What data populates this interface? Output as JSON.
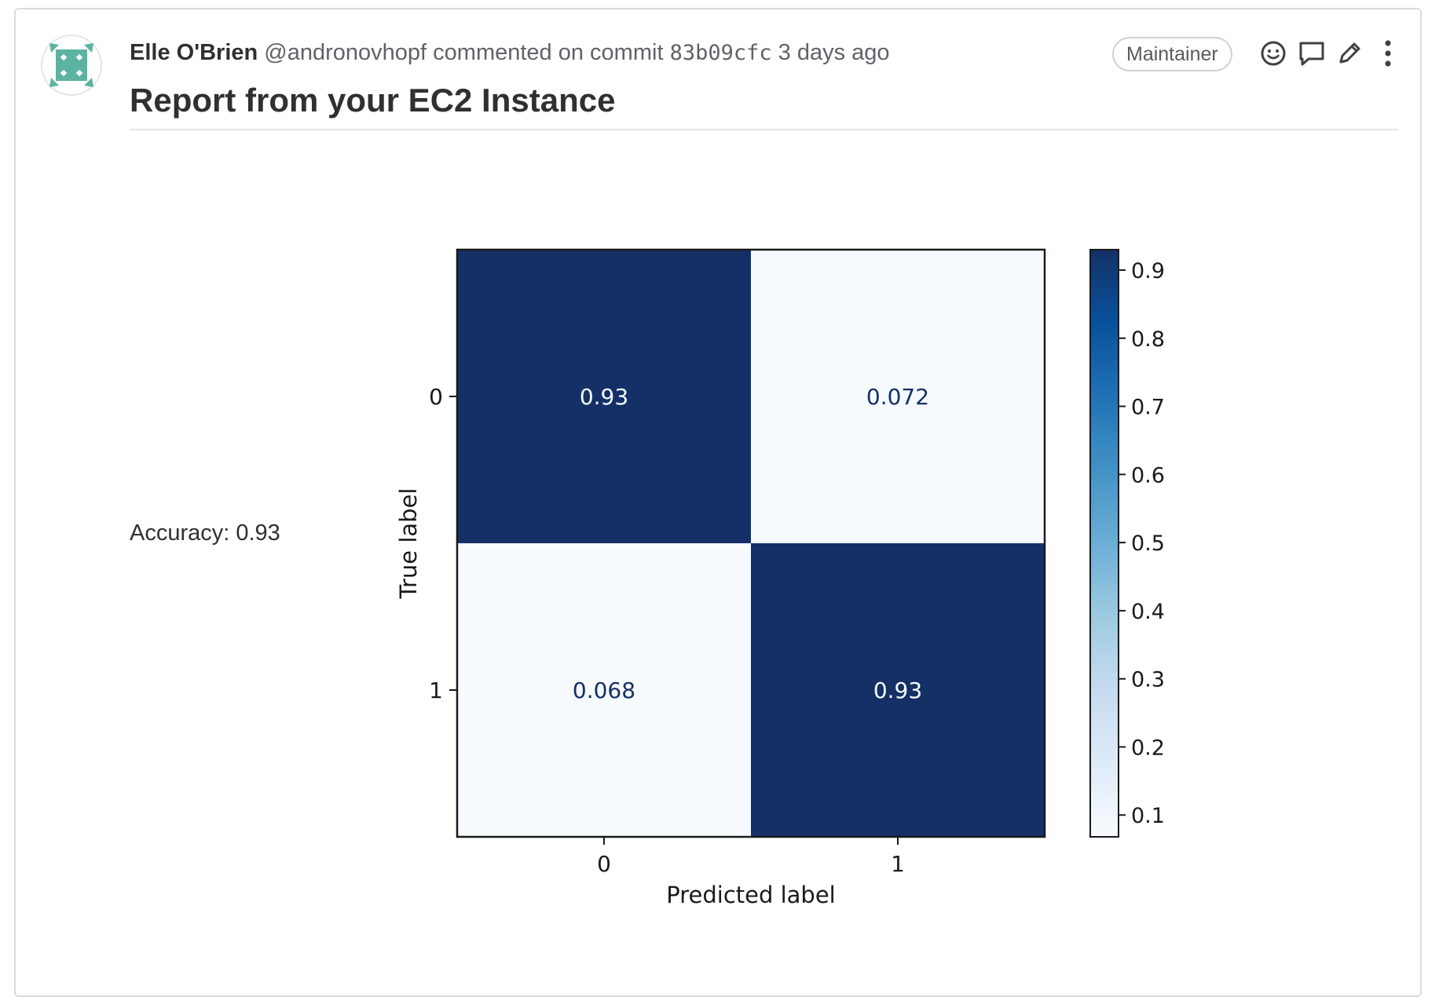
{
  "comment": {
    "author_name": "Elle O'Brien",
    "author_handle": "@andronovhopf",
    "action_text": "commented on commit",
    "commit_sha": "83b09cfc",
    "timestamp": "3 days ago",
    "role_badge": "Maintainer",
    "title": "Report from your EC2 Instance",
    "accuracy_text": "Accuracy: 0.93"
  },
  "icons": {
    "avatar": "identicon-avatar",
    "emoji": "smiley-icon",
    "reply": "comment-bubble-icon",
    "edit": "pencil-icon",
    "more": "kebab-menu-icon"
  },
  "colors": {
    "dark_cell": "#143066",
    "light_cell": "#f7fbff",
    "avatar_green": "#5db3a1"
  },
  "chart_data": {
    "type": "heatmap",
    "title": "",
    "xlabel": "Predicted label",
    "ylabel": "True label",
    "x_categories": [
      "0",
      "1"
    ],
    "y_categories": [
      "0",
      "1"
    ],
    "values": [
      [
        0.93,
        0.072
      ],
      [
        0.068,
        0.93
      ]
    ],
    "cell_labels": [
      [
        "0.93",
        "0.072"
      ],
      [
        "0.068",
        "0.93"
      ]
    ],
    "colormap": "Blues",
    "colorbar": {
      "range": [
        0.068,
        0.93
      ],
      "ticks": [
        0.1,
        0.2,
        0.3,
        0.4,
        0.5,
        0.6,
        0.7,
        0.8,
        0.9
      ],
      "tick_labels": [
        "0.1",
        "0.2",
        "0.3",
        "0.4",
        "0.5",
        "0.6",
        "0.7",
        "0.8",
        "0.9"
      ]
    }
  }
}
